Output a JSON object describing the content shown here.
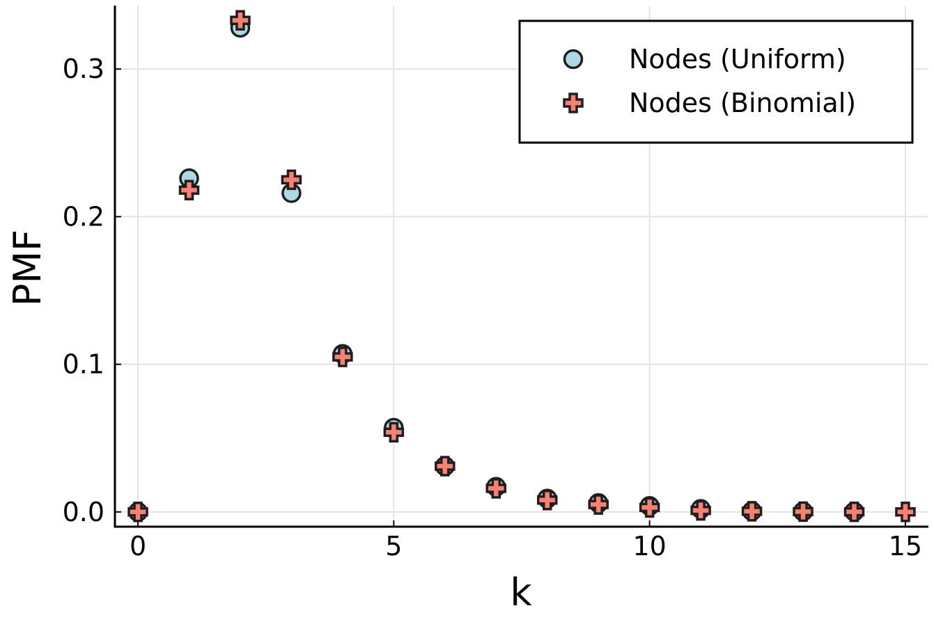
{
  "chart_data": {
    "type": "scatter",
    "title": "",
    "xlabel": "k",
    "ylabel": "PMF",
    "xlim": [
      -0.45,
      15.45
    ],
    "ylim": [
      -0.01,
      0.343
    ],
    "xticks": [
      0,
      5,
      10,
      15
    ],
    "xtick_labels": [
      "0",
      "5",
      "10",
      "15"
    ],
    "yticks": [
      0.0,
      0.1,
      0.2,
      0.3
    ],
    "ytick_labels": [
      "0.0",
      "0.1",
      "0.2",
      "0.3"
    ],
    "grid": true,
    "legend_position": "top-right",
    "series": [
      {
        "name": "Nodes (Uniform)",
        "marker": "circle",
        "color": "#add8e6",
        "x": [
          0,
          1,
          2,
          3,
          4,
          5,
          6,
          7,
          8,
          9,
          10,
          11,
          12,
          13,
          14
        ],
        "y": [
          0.0,
          0.226,
          0.328,
          0.216,
          0.107,
          0.057,
          0.031,
          0.017,
          0.009,
          0.006,
          0.004,
          0.002,
          0.0005,
          0.0003,
          0.0002
        ]
      },
      {
        "name": "Nodes (Binomial)",
        "marker": "cross",
        "color": "#fa8072",
        "x": [
          0,
          1,
          2,
          3,
          4,
          5,
          6,
          7,
          8,
          9,
          10,
          11,
          12,
          13,
          14,
          15
        ],
        "y": [
          0.0,
          0.218,
          0.333,
          0.225,
          0.105,
          0.054,
          0.031,
          0.016,
          0.008,
          0.005,
          0.003,
          0.001,
          0.0004,
          0.0002,
          0.0001,
          0.0
        ]
      }
    ]
  }
}
